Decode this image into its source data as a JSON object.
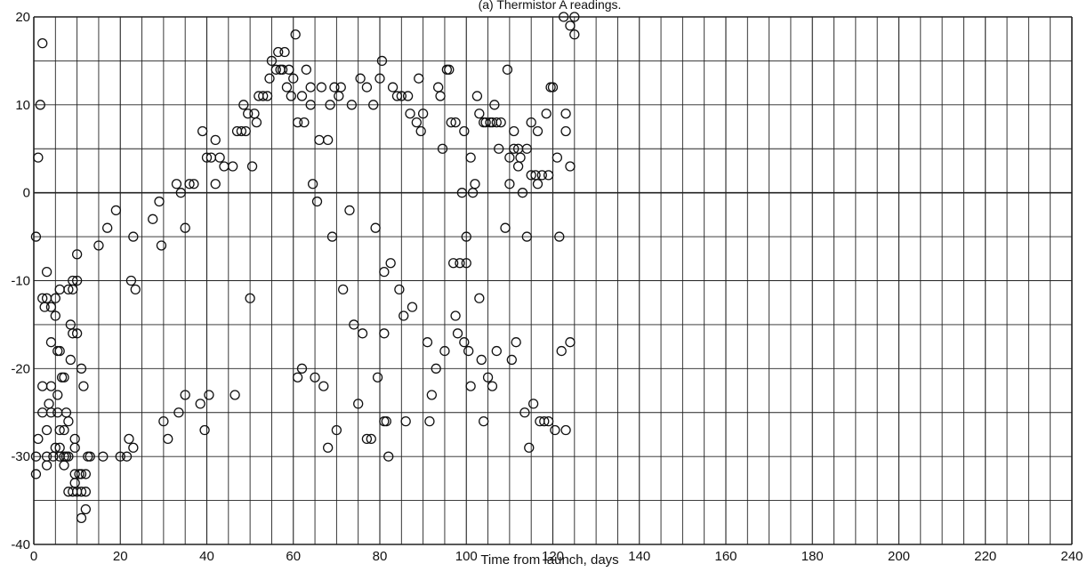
{
  "chart_data": {
    "type": "scatter",
    "title": "(a) Thermistor A readings.",
    "xlabel": "Time from launch, days",
    "ylabel": "",
    "xlim": [
      0,
      240
    ],
    "ylim": [
      -40,
      20
    ],
    "x_ticks": [
      0,
      20,
      40,
      60,
      80,
      100,
      120,
      140,
      160,
      180,
      200,
      220,
      240
    ],
    "y_ticks": [
      20,
      10,
      0,
      -10,
      -20,
      -30,
      -40
    ],
    "x_grid_step": 5,
    "y_grid_step": 5,
    "grid": true,
    "marker": "open-circle",
    "colors": {
      "ink": "#111111",
      "grid": "#222222",
      "background": "#ffffff"
    },
    "series": [
      {
        "points": [
          [
            0.5,
            -32
          ],
          [
            0.5,
            -30
          ],
          [
            1,
            -28
          ],
          [
            0.5,
            -5
          ],
          [
            1,
            4
          ],
          [
            1.5,
            10
          ],
          [
            2,
            17
          ],
          [
            2,
            -25
          ],
          [
            2,
            -22
          ],
          [
            2,
            -12
          ],
          [
            2.5,
            -13
          ],
          [
            3,
            -9
          ],
          [
            3,
            -12
          ],
          [
            3,
            -30
          ],
          [
            3,
            -31
          ],
          [
            3,
            -27
          ],
          [
            3.5,
            -24
          ],
          [
            4,
            -17
          ],
          [
            4,
            -13
          ],
          [
            4,
            -25
          ],
          [
            4,
            -22
          ],
          [
            4.5,
            -30
          ],
          [
            5,
            -29
          ],
          [
            5,
            -14
          ],
          [
            5,
            -12
          ],
          [
            5.5,
            -18
          ],
          [
            5.5,
            -23
          ],
          [
            5.5,
            -25
          ],
          [
            6,
            -18
          ],
          [
            6,
            -11
          ],
          [
            6,
            -27
          ],
          [
            6,
            -29
          ],
          [
            6,
            -30
          ],
          [
            6.5,
            -21
          ],
          [
            7,
            -21
          ],
          [
            7,
            -27
          ],
          [
            7,
            -30
          ],
          [
            7,
            -31
          ],
          [
            7.5,
            -25
          ],
          [
            7.5,
            -30
          ],
          [
            8,
            -26
          ],
          [
            8,
            -11
          ],
          [
            8,
            -30
          ],
          [
            8,
            -34
          ],
          [
            8.5,
            -19
          ],
          [
            8.5,
            -15
          ],
          [
            9,
            -10
          ],
          [
            9,
            -11
          ],
          [
            9,
            -16
          ],
          [
            9,
            -34
          ],
          [
            9.5,
            -28
          ],
          [
            9.5,
            -29
          ],
          [
            9.5,
            -32
          ],
          [
            9.5,
            -33
          ],
          [
            10,
            -7
          ],
          [
            10,
            -10
          ],
          [
            10,
            -16
          ],
          [
            10,
            -34
          ],
          [
            10.5,
            -32
          ],
          [
            11,
            -20
          ],
          [
            11,
            -37
          ],
          [
            11,
            -32
          ],
          [
            11,
            -34
          ],
          [
            11.5,
            -22
          ],
          [
            12,
            -32
          ],
          [
            12,
            -34
          ],
          [
            12,
            -36
          ],
          [
            12.5,
            -30
          ],
          [
            13,
            -30
          ],
          [
            15,
            -6
          ],
          [
            16,
            -30
          ],
          [
            17,
            -4
          ],
          [
            19,
            -2
          ],
          [
            20,
            -30
          ],
          [
            21.5,
            -30
          ],
          [
            22,
            -28
          ],
          [
            22.5,
            -10
          ],
          [
            23,
            -29
          ],
          [
            23,
            -5
          ],
          [
            23.5,
            -11
          ],
          [
            27.5,
            -3
          ],
          [
            29,
            -1
          ],
          [
            29.5,
            -6
          ],
          [
            30,
            -26
          ],
          [
            31,
            -28
          ],
          [
            33,
            1
          ],
          [
            33.5,
            -25
          ],
          [
            34,
            0
          ],
          [
            35,
            -4
          ],
          [
            35,
            -23
          ],
          [
            36,
            1
          ],
          [
            37,
            1
          ],
          [
            38.5,
            -24
          ],
          [
            39,
            7
          ],
          [
            39.5,
            -27
          ],
          [
            40,
            4
          ],
          [
            40.5,
            -23
          ],
          [
            41,
            4
          ],
          [
            42,
            1
          ],
          [
            42,
            6
          ],
          [
            43,
            4
          ],
          [
            44,
            3
          ],
          [
            46,
            3
          ],
          [
            46.5,
            -23
          ],
          [
            47,
            7
          ],
          [
            48,
            7
          ],
          [
            48.5,
            10
          ],
          [
            49,
            7
          ],
          [
            49.5,
            9
          ],
          [
            50,
            -12
          ],
          [
            50.5,
            3
          ],
          [
            51,
            9
          ],
          [
            51.5,
            8
          ],
          [
            52,
            11
          ],
          [
            53,
            11
          ],
          [
            54,
            11
          ],
          [
            54.5,
            13
          ],
          [
            55,
            15
          ],
          [
            56,
            14
          ],
          [
            56.5,
            16
          ],
          [
            57,
            14
          ],
          [
            57.5,
            14
          ],
          [
            58,
            16
          ],
          [
            58.5,
            12
          ],
          [
            59,
            14
          ],
          [
            59.5,
            11
          ],
          [
            60,
            13
          ],
          [
            60.5,
            18
          ],
          [
            61,
            -21
          ],
          [
            61,
            8
          ],
          [
            62,
            -20
          ],
          [
            62,
            11
          ],
          [
            62.5,
            8
          ],
          [
            63,
            14
          ],
          [
            64,
            10
          ],
          [
            64,
            12
          ],
          [
            64.5,
            1
          ],
          [
            65,
            -21
          ],
          [
            65.5,
            -1
          ],
          [
            66,
            6
          ],
          [
            66.5,
            12
          ],
          [
            67,
            -22
          ],
          [
            68,
            -29
          ],
          [
            68,
            6
          ],
          [
            68.5,
            10
          ],
          [
            69,
            -5
          ],
          [
            69.5,
            12
          ],
          [
            70,
            -27
          ],
          [
            70.5,
            11
          ],
          [
            71,
            12
          ],
          [
            71.5,
            -11
          ],
          [
            73,
            -2
          ],
          [
            73.5,
            10
          ],
          [
            74,
            -15
          ],
          [
            75,
            -24
          ],
          [
            75.5,
            13
          ],
          [
            76,
            -16
          ],
          [
            77,
            -28
          ],
          [
            77,
            12
          ],
          [
            78,
            -28
          ],
          [
            78.5,
            10
          ],
          [
            79,
            -4
          ],
          [
            79.5,
            -21
          ],
          [
            80,
            13
          ],
          [
            80.5,
            15
          ],
          [
            81,
            -16
          ],
          [
            81,
            -9
          ],
          [
            81,
            -26
          ],
          [
            81.5,
            -26
          ],
          [
            82,
            -30
          ],
          [
            82.5,
            -8
          ],
          [
            83,
            12
          ],
          [
            84,
            11
          ],
          [
            84.5,
            -11
          ],
          [
            85,
            11
          ],
          [
            85.5,
            -14
          ],
          [
            86,
            -26
          ],
          [
            86.5,
            11
          ],
          [
            87,
            9
          ],
          [
            87.5,
            -13
          ],
          [
            88.5,
            8
          ],
          [
            89,
            13
          ],
          [
            89.5,
            7
          ],
          [
            90,
            9
          ],
          [
            91,
            -17
          ],
          [
            91.5,
            -26
          ],
          [
            92,
            -23
          ],
          [
            93,
            -20
          ],
          [
            93.5,
            12
          ],
          [
            94,
            11
          ],
          [
            94.5,
            5
          ],
          [
            95,
            -18
          ],
          [
            95.5,
            14
          ],
          [
            96,
            14
          ],
          [
            96.5,
            8
          ],
          [
            97,
            -8
          ],
          [
            97.5,
            8
          ],
          [
            97.5,
            -14
          ],
          [
            98,
            -16
          ],
          [
            98.5,
            -8
          ],
          [
            99,
            0
          ],
          [
            99.5,
            -17
          ],
          [
            99.5,
            7
          ],
          [
            100,
            -5
          ],
          [
            100,
            -8
          ],
          [
            100.5,
            -18
          ],
          [
            101,
            -22
          ],
          [
            101,
            4
          ],
          [
            101.5,
            0
          ],
          [
            102,
            1
          ],
          [
            102.5,
            11
          ],
          [
            103,
            9
          ],
          [
            103,
            -12
          ],
          [
            103.5,
            -19
          ],
          [
            104,
            -26
          ],
          [
            104,
            8
          ],
          [
            104.5,
            8
          ],
          [
            105,
            -21
          ],
          [
            105.5,
            8
          ],
          [
            106,
            -22
          ],
          [
            106,
            8
          ],
          [
            106.5,
            10
          ],
          [
            107,
            -18
          ],
          [
            107,
            8
          ],
          [
            107.5,
            5
          ],
          [
            108,
            8
          ],
          [
            109,
            -4
          ],
          [
            109.5,
            14
          ],
          [
            110,
            1
          ],
          [
            110,
            4
          ],
          [
            110.5,
            -19
          ],
          [
            111,
            7
          ],
          [
            111,
            5
          ],
          [
            111.5,
            -17
          ],
          [
            112,
            5
          ],
          [
            112,
            3
          ],
          [
            112.5,
            4
          ],
          [
            113,
            0
          ],
          [
            113.5,
            -25
          ],
          [
            114,
            5
          ],
          [
            114,
            -5
          ],
          [
            114.5,
            -29
          ],
          [
            115,
            8
          ],
          [
            115,
            2
          ],
          [
            115.5,
            -24
          ],
          [
            116,
            2
          ],
          [
            116.5,
            1
          ],
          [
            116.5,
            7
          ],
          [
            117,
            -26
          ],
          [
            117.5,
            2
          ],
          [
            118,
            -26
          ],
          [
            118.5,
            9
          ],
          [
            119,
            2
          ],
          [
            119,
            -26
          ],
          [
            119.5,
            12
          ],
          [
            120,
            12
          ],
          [
            120.5,
            -27
          ],
          [
            121,
            4
          ],
          [
            121.5,
            -5
          ],
          [
            122,
            -18
          ],
          [
            122.5,
            20
          ],
          [
            123,
            7
          ],
          [
            123,
            9
          ],
          [
            123,
            -27
          ],
          [
            124,
            3
          ],
          [
            124,
            19
          ],
          [
            124,
            -17
          ],
          [
            125,
            20
          ],
          [
            125,
            18
          ]
        ]
      }
    ]
  }
}
